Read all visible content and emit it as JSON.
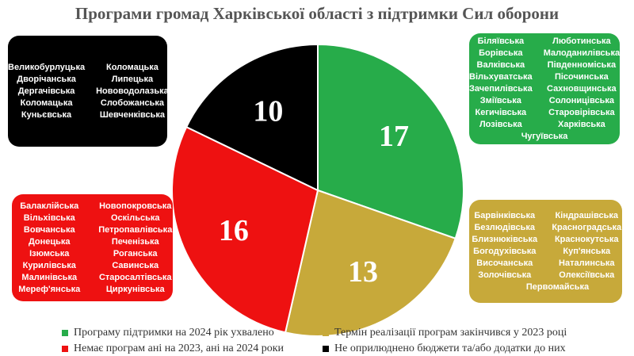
{
  "title": "Програми громад Харківської області з підтримки Сил оборони",
  "colors": {
    "green": "#27ac4a",
    "gold": "#c7a93a",
    "red": "#ee1111",
    "black": "#000000"
  },
  "chart_data": {
    "type": "pie",
    "title": "Програми громад Харківської області з підтримки Сил оборони",
    "legend_position": "bottom",
    "slices": [
      {
        "name": "Програму підтримки на 2024 рік ухвалено",
        "value": 17,
        "color": "#27ac4a"
      },
      {
        "name": "Термін реалізації програм закінчився у 2023 році",
        "value": 13,
        "color": "#c7a93a"
      },
      {
        "name": "Немає програм ані на 2023, ані на 2024 роки",
        "value": 16,
        "color": "#ee1111"
      },
      {
        "name": "Не оприлюднено бюджети та/або додатки до них",
        "value": 10,
        "color": "#000000"
      }
    ],
    "labels": [
      "17",
      "13",
      "16",
      "10"
    ]
  },
  "groups": {
    "green": [
      "Біляївська",
      "Люботинська",
      "Борівська",
      "Малоданилівська",
      "Валківська",
      "Південноміська",
      "Вільхуватська",
      "Пісочинська",
      "Зачепилівська",
      "Сахновщинська",
      "Зміївська",
      "Солоницівська",
      "Кегичівська",
      "Старовірівська",
      "Лозівська",
      "Харківська",
      "Чугуївська"
    ],
    "gold": [
      "Барвінківська",
      "Кіндрашівська",
      "Безлюдівська",
      "Красноградська",
      "Близнюківська",
      "Краснокутська",
      "Богодухівська",
      "Куп'янська",
      "Височанська",
      "Наталинська",
      "Золочівська",
      "Олексіївська",
      "Первомайська"
    ],
    "red": [
      "Балаклійська",
      "Новопокровська",
      "Вільхівська",
      "Оскільська",
      "Вовчанська",
      "Петропавлівська",
      "Донецька",
      "Печенізька",
      "Ізюмська",
      "Роганська",
      "Курилівська",
      "Савинська",
      "Малинівська",
      "Старосалтівська",
      "Мереф'янська",
      "Циркунівська"
    ],
    "black": [
      "Великобурлуцька",
      "Коломацька",
      "Дворічанська",
      "Липецька",
      "Дергачівська",
      "Нововодолазька",
      "Коломацька",
      "Слобожанська",
      "Куньєвська",
      "Шевченківська"
    ]
  }
}
